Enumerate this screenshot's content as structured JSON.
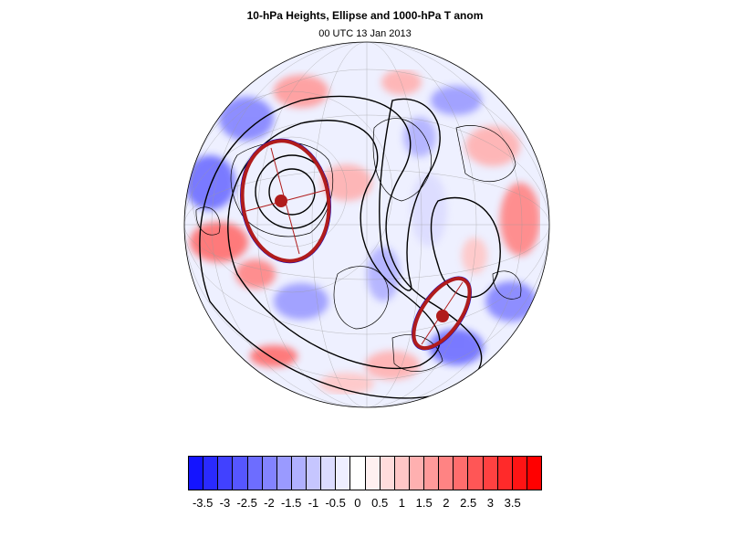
{
  "title": "10-hPa Heights, Ellipse and 1000-hPa T anom",
  "subtitle": "00 UTC 13 Jan 2013",
  "map": {
    "projection": "orthographic",
    "fill_variable": "1000-hPa T anom",
    "contour_variable": "10-hPa Heights",
    "overlay": "Ellipse"
  },
  "colorbar": {
    "labels": [
      "-3.5",
      "-3",
      "-2.5",
      "-2",
      "-1.5",
      "-1",
      "-0.5",
      "0",
      "0.5",
      "1",
      "1.5",
      "2",
      "2.5",
      "3",
      "3.5"
    ],
    "colors": [
      "#1414ff",
      "#2a2aff",
      "#4141ff",
      "#5656ff",
      "#6d6dff",
      "#8383ff",
      "#9a9aff",
      "#b0b0ff",
      "#c6c6ff",
      "#dcdcff",
      "#eeeeff",
      "#ffffff",
      "#fff0f0",
      "#ffdcdc",
      "#ffc6c6",
      "#ffb0b0",
      "#ff9a9a",
      "#ff8383",
      "#ff6d6d",
      "#ff5656",
      "#ff4141",
      "#ff2a2a",
      "#ff1414",
      "#ff0000"
    ]
  }
}
